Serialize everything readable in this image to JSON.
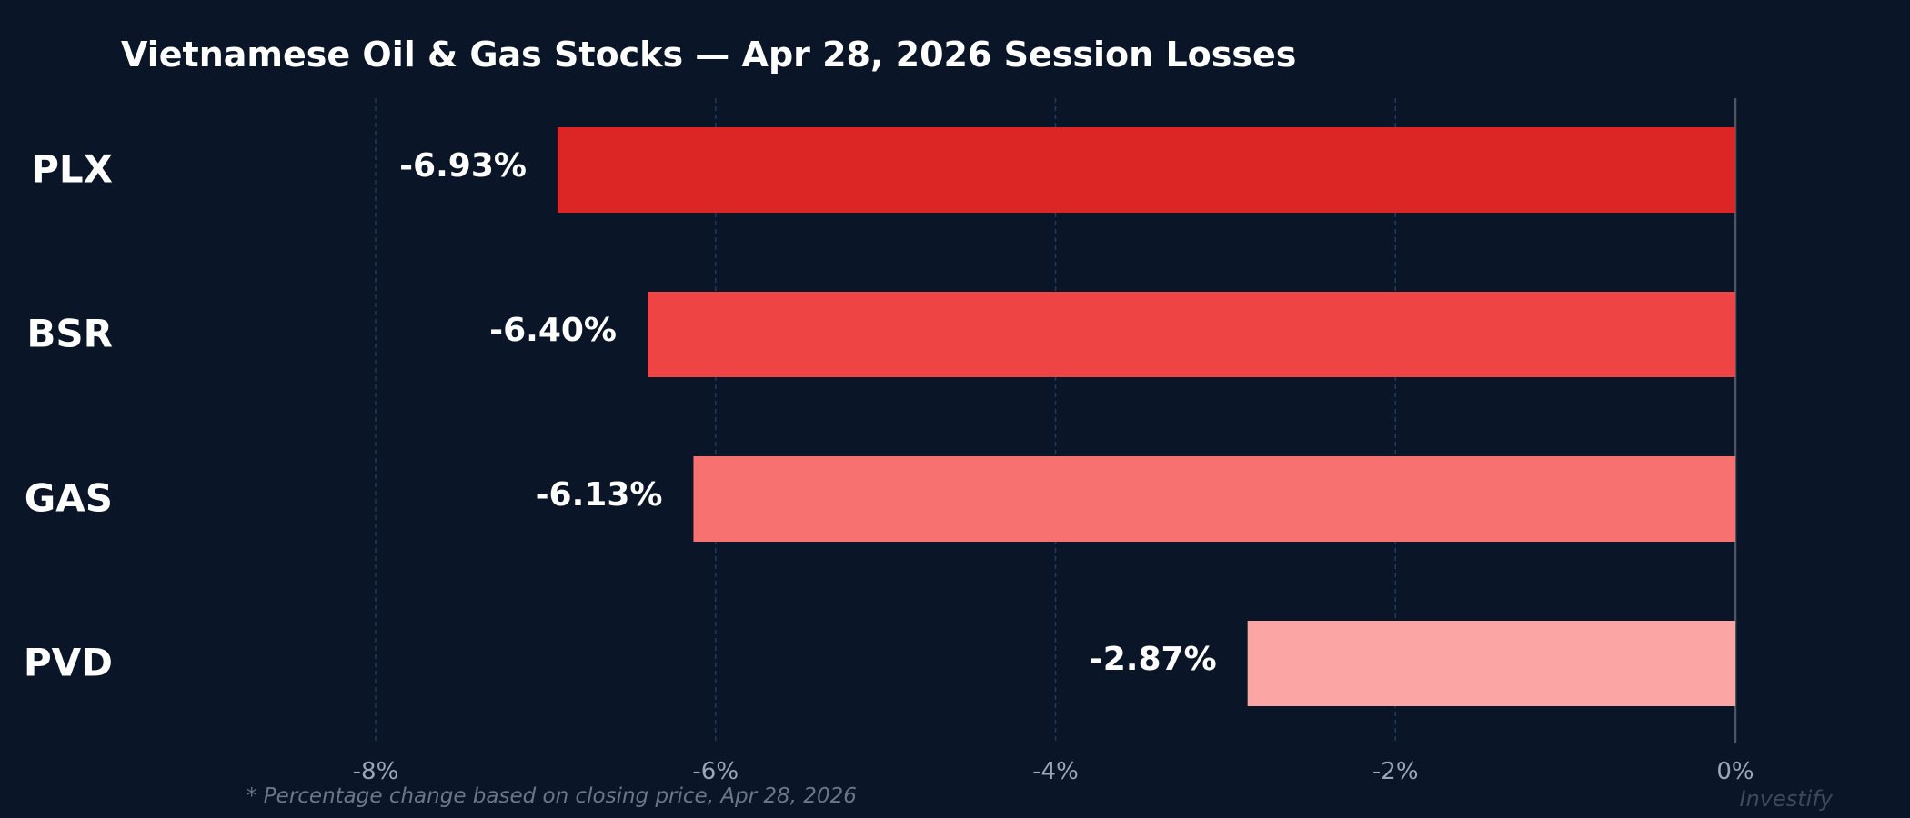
{
  "chart_data": {
    "type": "bar",
    "orientation": "horizontal",
    "title": "Vietnamese Oil & Gas Stocks — Apr 28, 2026 Session Losses",
    "categories": [
      "PLX",
      "BSR",
      "GAS",
      "PVD"
    ],
    "values": [
      -6.93,
      -6.4,
      -6.13,
      -2.87
    ],
    "value_labels": [
      "-6.93%",
      "-6.40%",
      "-6.13%",
      "-2.87%"
    ],
    "bar_colors": [
      "#dc2626",
      "#ef4444",
      "#f87171",
      "#fca5a5"
    ],
    "xlim": [
      -8,
      0
    ],
    "x_ticks": [
      -8,
      -6,
      -4,
      -2,
      0
    ],
    "x_tick_labels": [
      "-8%",
      "-6%",
      "-4%",
      "-2%",
      "0%"
    ],
    "xlabel": "",
    "ylabel": "",
    "grid": "vertical dashed",
    "footnote": "* Percentage change based on closing price, Apr 28, 2026",
    "watermark": "Investify"
  },
  "colors": {
    "background": "#0a1628",
    "grid": "#1e3a5f",
    "zero_line": "#4b5563",
    "text": "#ffffff",
    "tick_text": "#9aa7b8"
  }
}
